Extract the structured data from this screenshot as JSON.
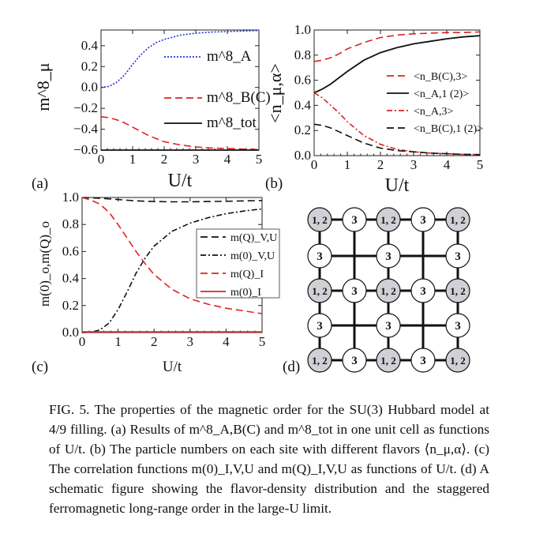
{
  "figure": {
    "panel_labels": [
      "(a)",
      "(b)",
      "(c)",
      "(d)"
    ],
    "caption": "FIG. 5. The properties of the magnetic order for the SU(3) Hubbard model at 4/9 filling. (a) Results of m^8_A,B(C) and m^8_tot in one unit cell as functions of U/t. (b) The particle numbers on each site with different flavors ⟨n_μ,α⟩. (c) The correlation functions m(0)_I,V,U and m(Q)_I,V,U as functions of U/t. (d) A schematic figure showing the flavor-density distribution and the staggered ferromagnetic long-range order in the large-U limit."
  },
  "chart_data": [
    {
      "type": "line",
      "panel": "(a)",
      "xlabel": "U/t",
      "ylabel": "m^8_μ",
      "xlim": [
        0,
        5
      ],
      "ylim": [
        -0.6,
        0.55
      ],
      "xticks": [
        0,
        1,
        2,
        3,
        4,
        5
      ],
      "yticks": [
        0.4,
        0.2,
        0.0,
        -0.2,
        -0.4,
        -0.6
      ],
      "ytick_labels": [
        "0.4",
        "0.2",
        "0.0",
        "−0.2",
        "−0.4",
        "−0.6"
      ],
      "legend": [
        {
          "label": "m^8_A",
          "color": "#2233dd",
          "dash": "dotted"
        },
        {
          "label": "m^8_B(C)",
          "color": "#dd2222",
          "dash": "dashed"
        },
        {
          "label": "m^8_tot",
          "color": "#111111",
          "dash": "solid"
        }
      ],
      "series": [
        {
          "name": "m^8_A",
          "x": [
            0,
            0.25,
            0.5,
            0.75,
            1,
            1.25,
            1.5,
            1.75,
            2,
            2.5,
            3,
            3.5,
            4,
            4.5,
            5
          ],
          "y": [
            0.0,
            0.01,
            0.05,
            0.12,
            0.22,
            0.31,
            0.38,
            0.43,
            0.46,
            0.5,
            0.52,
            0.53,
            0.535,
            0.54,
            0.545
          ],
          "color": "#2233dd",
          "dash": "dotted"
        },
        {
          "name": "m^8_B(C)",
          "x": [
            0,
            0.25,
            0.5,
            0.75,
            1,
            1.25,
            1.5,
            1.75,
            2,
            2.5,
            3,
            3.5,
            4,
            4.5,
            5
          ],
          "y": [
            -0.28,
            -0.29,
            -0.31,
            -0.34,
            -0.38,
            -0.42,
            -0.46,
            -0.49,
            -0.52,
            -0.55,
            -0.57,
            -0.58,
            -0.585,
            -0.59,
            -0.595
          ],
          "color": "#dd2222",
          "dash": "dashed"
        },
        {
          "name": "m^8_tot",
          "x": [
            0,
            1,
            2,
            3,
            4,
            5
          ],
          "y": [
            -0.6,
            -0.6,
            -0.6,
            -0.6,
            -0.6,
            -0.6
          ],
          "color": "#111111",
          "dash": "solid"
        }
      ]
    },
    {
      "type": "line",
      "panel": "(b)",
      "xlabel": "U/t",
      "ylabel": "<n_μ,α>",
      "xlim": [
        0,
        5
      ],
      "ylim": [
        0,
        1
      ],
      "xticks": [
        0,
        1,
        2,
        3,
        4,
        5
      ],
      "yticks": [
        0.0,
        0.2,
        0.4,
        0.6,
        0.8,
        1.0
      ],
      "legend": [
        {
          "label": "<n_B(C),3>",
          "color": "#dd2222",
          "dash": "dashed"
        },
        {
          "label": "<n_A,1 (2)>",
          "color": "#111111",
          "dash": "solid"
        },
        {
          "label": "<n_A,3>",
          "color": "#dd2222",
          "dash": "dashdot"
        },
        {
          "label": "<n_B(C),1 (2)>",
          "color": "#111111",
          "dash": "dashed"
        }
      ],
      "series": [
        {
          "name": "<n_B(C),3>",
          "x": [
            0,
            0.25,
            0.5,
            0.75,
            1,
            1.5,
            2,
            2.5,
            3,
            3.5,
            4,
            4.5,
            5
          ],
          "y": [
            0.75,
            0.76,
            0.78,
            0.81,
            0.85,
            0.9,
            0.94,
            0.96,
            0.97,
            0.975,
            0.98,
            0.98,
            0.985
          ],
          "color": "#dd2222",
          "dash": "dashed"
        },
        {
          "name": "<n_A,1 (2)>",
          "x": [
            0,
            0.25,
            0.5,
            0.75,
            1,
            1.5,
            2,
            2.5,
            3,
            3.5,
            4,
            4.5,
            5
          ],
          "y": [
            0.5,
            0.53,
            0.57,
            0.62,
            0.67,
            0.76,
            0.82,
            0.86,
            0.89,
            0.91,
            0.93,
            0.945,
            0.955
          ],
          "color": "#111111",
          "dash": "solid"
        },
        {
          "name": "<n_A,3>",
          "x": [
            0,
            0.25,
            0.5,
            0.75,
            1,
            1.5,
            2,
            2.5,
            3,
            3.5,
            4,
            4.5,
            5
          ],
          "y": [
            0.5,
            0.46,
            0.4,
            0.34,
            0.27,
            0.16,
            0.09,
            0.05,
            0.03,
            0.02,
            0.015,
            0.01,
            0.008
          ],
          "color": "#dd2222",
          "dash": "dashdot"
        },
        {
          "name": "<n_B(C),1 (2)>",
          "x": [
            0,
            0.25,
            0.5,
            0.75,
            1,
            1.5,
            2,
            2.5,
            3,
            3.5,
            4,
            4.5,
            5
          ],
          "y": [
            0.25,
            0.24,
            0.22,
            0.19,
            0.16,
            0.1,
            0.06,
            0.04,
            0.03,
            0.02,
            0.015,
            0.01,
            0.008
          ],
          "color": "#111111",
          "dash": "dashed"
        }
      ]
    },
    {
      "type": "line",
      "panel": "(c)",
      "xlabel": "U/t",
      "ylabel": "m(0)_o,m(Q)_o",
      "xlim": [
        0,
        5
      ],
      "ylim": [
        0,
        1
      ],
      "xticks": [
        0,
        1,
        2,
        3,
        4,
        5
      ],
      "yticks": [
        0.0,
        0.2,
        0.4,
        0.6,
        0.8,
        1.0
      ],
      "legend": [
        {
          "label": "m(Q)_V,U",
          "color": "#111111",
          "dash": "dashed"
        },
        {
          "label": "m(0)_V,U",
          "color": "#111111",
          "dash": "dashdot"
        },
        {
          "label": "m(Q)_I",
          "color": "#dd2222",
          "dash": "dashed"
        },
        {
          "label": "m(0)_I",
          "color": "#dd2222",
          "dash": "solid"
        }
      ],
      "series": [
        {
          "name": "m(Q)_V,U",
          "x": [
            0,
            0.5,
            1,
            1.5,
            2,
            2.5,
            3,
            3.5,
            4,
            4.5,
            5
          ],
          "y": [
            1.0,
            0.995,
            0.985,
            0.975,
            0.97,
            0.968,
            0.968,
            0.97,
            0.972,
            0.975,
            0.978
          ],
          "color": "#111111",
          "dash": "dashed"
        },
        {
          "name": "m(0)_V,U",
          "x": [
            0,
            0.25,
            0.5,
            0.75,
            1,
            1.25,
            1.5,
            1.75,
            2,
            2.5,
            3,
            3.5,
            4,
            4.5,
            5
          ],
          "y": [
            0.0,
            0.003,
            0.02,
            0.07,
            0.17,
            0.3,
            0.44,
            0.55,
            0.64,
            0.75,
            0.81,
            0.85,
            0.88,
            0.9,
            0.915
          ],
          "color": "#111111",
          "dash": "dashdot"
        },
        {
          "name": "m(Q)_I",
          "x": [
            0,
            0.25,
            0.5,
            0.75,
            1,
            1.25,
            1.5,
            1.75,
            2,
            2.5,
            3,
            3.5,
            4,
            4.5,
            5
          ],
          "y": [
            1.0,
            0.98,
            0.95,
            0.89,
            0.8,
            0.7,
            0.6,
            0.51,
            0.43,
            0.32,
            0.25,
            0.21,
            0.18,
            0.16,
            0.14
          ],
          "color": "#dd2222",
          "dash": "dashed"
        },
        {
          "name": "m(0)_I",
          "x": [
            0,
            1,
            2,
            3,
            4,
            5
          ],
          "y": [
            0.005,
            0.005,
            0.005,
            0.005,
            0.005,
            0.005
          ],
          "color": "#dd2222",
          "dash": "solid"
        }
      ]
    }
  ],
  "lattice": {
    "panel": "(d)",
    "label_AB": "1, 2",
    "label_C": "3",
    "fill_AB": "#d0d0d6",
    "fill_C": "#ffffff"
  }
}
